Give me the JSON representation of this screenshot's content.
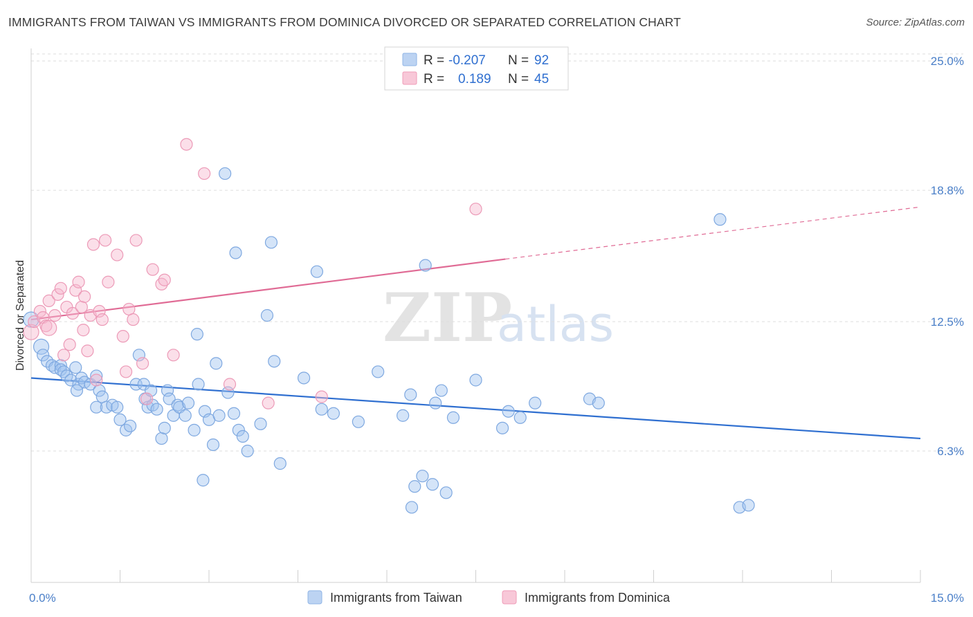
{
  "title": "IMMIGRANTS FROM TAIWAN VS IMMIGRANTS FROM DOMINICA DIVORCED OR SEPARATED CORRELATION CHART",
  "source": "Source: ZipAtlas.com",
  "watermark": {
    "zip": "ZIP",
    "atlas": "atlas"
  },
  "legend": {
    "rows": [
      {
        "r_label": "R =",
        "r_value": "-0.207",
        "n_label": "N =",
        "n_value": "92",
        "color": "#8fb4e6",
        "fill": "#bcd3f2"
      },
      {
        "r_label": "R =",
        "r_value": "0.189",
        "n_label": "N =",
        "n_value": "45",
        "color": "#ef9cb8",
        "fill": "#f8c8d8"
      }
    ]
  },
  "bottom_legend": [
    {
      "label": "Immigrants from Taiwan",
      "fill": "#bcd3f2",
      "stroke": "#8fb4e6"
    },
    {
      "label": "Immigrants from Dominica",
      "fill": "#f8c8d8",
      "stroke": "#ef9cb8"
    }
  ],
  "chart_data": {
    "type": "scatter",
    "title": "IMMIGRANTS FROM TAIWAN VS IMMIGRANTS FROM DOMINICA DIVORCED OR SEPARATED CORRELATION CHART",
    "xlabel": "",
    "ylabel": "Divorced or Separated",
    "xlim": [
      0,
      15
    ],
    "ylim": [
      0,
      25.6
    ],
    "x_tick_labels": [
      "0.0%",
      "15.0%"
    ],
    "y_ticks": [
      6.3,
      12.5,
      18.8,
      25.0
    ],
    "y_tick_labels": [
      "6.3%",
      "12.5%",
      "18.8%",
      "25.0%"
    ],
    "grid": "horizontal dashed",
    "series": [
      {
        "name": "Immigrants from Taiwan",
        "color": "#4a7fc8",
        "line_color": "#2f6fd0",
        "trend": {
          "x": [
            0,
            15
          ],
          "y": [
            9.8,
            6.9
          ]
        },
        "points": [
          [
            0.0,
            12.6
          ],
          [
            0.17,
            11.3
          ],
          [
            0.2,
            10.9
          ],
          [
            0.27,
            10.6
          ],
          [
            0.35,
            10.4
          ],
          [
            0.4,
            10.3
          ],
          [
            0.5,
            10.4
          ],
          [
            0.5,
            10.2
          ],
          [
            0.55,
            10.1
          ],
          [
            0.6,
            9.9
          ],
          [
            0.67,
            9.7
          ],
          [
            0.75,
            10.3
          ],
          [
            0.8,
            9.5
          ],
          [
            0.85,
            9.8
          ],
          [
            0.9,
            9.6
          ],
          [
            0.77,
            9.2
          ],
          [
            1.0,
            9.5
          ],
          [
            1.1,
            9.9
          ],
          [
            1.15,
            9.2
          ],
          [
            1.2,
            8.9
          ],
          [
            1.1,
            8.4
          ],
          [
            1.27,
            8.4
          ],
          [
            1.37,
            8.5
          ],
          [
            1.45,
            8.4
          ],
          [
            1.5,
            7.8
          ],
          [
            1.6,
            7.3
          ],
          [
            1.67,
            7.5
          ],
          [
            1.77,
            9.5
          ],
          [
            1.82,
            10.9
          ],
          [
            1.9,
            9.5
          ],
          [
            1.92,
            8.8
          ],
          [
            1.97,
            8.4
          ],
          [
            2.02,
            9.2
          ],
          [
            2.05,
            8.5
          ],
          [
            2.12,
            8.3
          ],
          [
            2.2,
            6.9
          ],
          [
            2.25,
            7.4
          ],
          [
            2.3,
            9.2
          ],
          [
            2.33,
            8.8
          ],
          [
            2.4,
            8.0
          ],
          [
            2.47,
            8.5
          ],
          [
            2.5,
            8.4
          ],
          [
            2.6,
            8.0
          ],
          [
            2.65,
            8.6
          ],
          [
            2.75,
            7.3
          ],
          [
            2.82,
            9.5
          ],
          [
            2.8,
            11.9
          ],
          [
            2.9,
            4.9
          ],
          [
            2.93,
            8.2
          ],
          [
            3.0,
            7.8
          ],
          [
            3.07,
            6.6
          ],
          [
            3.12,
            10.5
          ],
          [
            3.17,
            8.0
          ],
          [
            3.27,
            19.6
          ],
          [
            3.32,
            9.1
          ],
          [
            3.42,
            8.1
          ],
          [
            3.45,
            15.8
          ],
          [
            3.5,
            7.3
          ],
          [
            3.57,
            7.0
          ],
          [
            3.65,
            6.3
          ],
          [
            3.87,
            7.6
          ],
          [
            3.98,
            12.8
          ],
          [
            4.05,
            16.3
          ],
          [
            4.1,
            10.6
          ],
          [
            4.2,
            5.7
          ],
          [
            4.6,
            9.8
          ],
          [
            4.82,
            14.9
          ],
          [
            4.9,
            8.3
          ],
          [
            5.1,
            8.1
          ],
          [
            5.52,
            7.7
          ],
          [
            5.85,
            10.1
          ],
          [
            6.27,
            8.0
          ],
          [
            6.4,
            9.0
          ],
          [
            6.42,
            3.6
          ],
          [
            6.47,
            4.6
          ],
          [
            6.6,
            5.1
          ],
          [
            6.65,
            15.2
          ],
          [
            6.77,
            4.7
          ],
          [
            6.82,
            8.6
          ],
          [
            6.92,
            9.2
          ],
          [
            7.0,
            4.3
          ],
          [
            7.12,
            7.9
          ],
          [
            7.5,
            9.7
          ],
          [
            7.95,
            7.4
          ],
          [
            8.05,
            8.2
          ],
          [
            8.25,
            7.9
          ],
          [
            8.5,
            8.6
          ],
          [
            9.42,
            8.8
          ],
          [
            9.57,
            8.6
          ],
          [
            11.62,
            17.4
          ],
          [
            11.95,
            3.6
          ],
          [
            12.1,
            3.7
          ]
        ]
      },
      {
        "name": "Immigrants from Dominica",
        "color": "#ef9cb8",
        "line_color": "#e06b95",
        "trend": {
          "x": [
            0,
            8.0
          ],
          "y": [
            12.6,
            15.5
          ]
        },
        "trend_dashed": {
          "x": [
            8.0,
            15
          ],
          "y": [
            15.5,
            18.0
          ]
        },
        "points": [
          [
            0.0,
            12.0
          ],
          [
            0.05,
            12.5
          ],
          [
            0.15,
            13.0
          ],
          [
            0.2,
            12.7
          ],
          [
            0.25,
            12.3
          ],
          [
            0.3,
            13.5
          ],
          [
            0.4,
            12.8
          ],
          [
            0.45,
            13.8
          ],
          [
            0.5,
            14.1
          ],
          [
            0.55,
            10.9
          ],
          [
            0.6,
            13.2
          ],
          [
            0.65,
            11.4
          ],
          [
            0.7,
            12.9
          ],
          [
            0.75,
            14.0
          ],
          [
            0.8,
            14.4
          ],
          [
            0.85,
            13.2
          ],
          [
            0.88,
            12.1
          ],
          [
            0.9,
            13.7
          ],
          [
            0.95,
            11.1
          ],
          [
            1.0,
            12.8
          ],
          [
            1.05,
            16.2
          ],
          [
            1.1,
            9.7
          ],
          [
            1.15,
            13.0
          ],
          [
            1.2,
            12.6
          ],
          [
            1.25,
            16.4
          ],
          [
            1.3,
            14.4
          ],
          [
            1.45,
            15.7
          ],
          [
            1.55,
            11.8
          ],
          [
            1.6,
            10.1
          ],
          [
            1.65,
            13.1
          ],
          [
            1.72,
            12.6
          ],
          [
            1.77,
            16.4
          ],
          [
            1.88,
            10.5
          ],
          [
            1.95,
            8.8
          ],
          [
            2.05,
            15.0
          ],
          [
            2.2,
            14.3
          ],
          [
            2.25,
            14.5
          ],
          [
            2.4,
            10.9
          ],
          [
            2.62,
            21.0
          ],
          [
            2.92,
            19.6
          ],
          [
            3.35,
            9.5
          ],
          [
            4.0,
            8.6
          ],
          [
            4.9,
            8.9
          ],
          [
            7.5,
            17.9
          ],
          [
            0.3,
            12.2
          ]
        ]
      }
    ]
  }
}
